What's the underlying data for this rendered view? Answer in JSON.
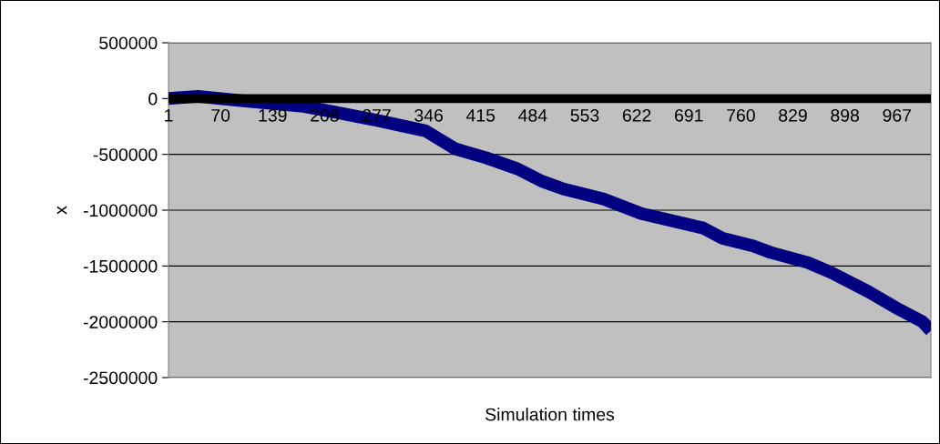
{
  "chart_data": {
    "type": "line",
    "xlabel": "Simulation times",
    "ylabel": "x",
    "xlim": [
      1,
      1012
    ],
    "xticks": [
      1,
      70,
      139,
      208,
      277,
      346,
      415,
      484,
      553,
      622,
      691,
      760,
      829,
      898,
      967
    ],
    "ylim": [
      -2500000,
      500000
    ],
    "yticks": [
      -2500000,
      -2000000,
      -1500000,
      -1000000,
      -500000,
      0,
      500000
    ],
    "grid": "y",
    "series": [
      {
        "color": "#000000",
        "x": [
          1,
          1012
        ],
        "values": [
          0,
          0
        ]
      },
      {
        "color": "#000080",
        "x": [
          1,
          40,
          100,
          180,
          221,
          281,
          342,
          381,
          422,
          464,
          496,
          525,
          578,
          628,
          710,
          735,
          776,
          800,
          849,
          880,
          929,
          970,
          1001,
          1012
        ],
        "values": [
          0,
          20000,
          -20000,
          -70000,
          -120000,
          -200000,
          -290000,
          -450000,
          -530000,
          -630000,
          -740000,
          -810000,
          -900000,
          -1030000,
          -1160000,
          -1250000,
          -1320000,
          -1380000,
          -1470000,
          -1560000,
          -1730000,
          -1890000,
          -2000000,
          -2080000
        ]
      }
    ]
  }
}
